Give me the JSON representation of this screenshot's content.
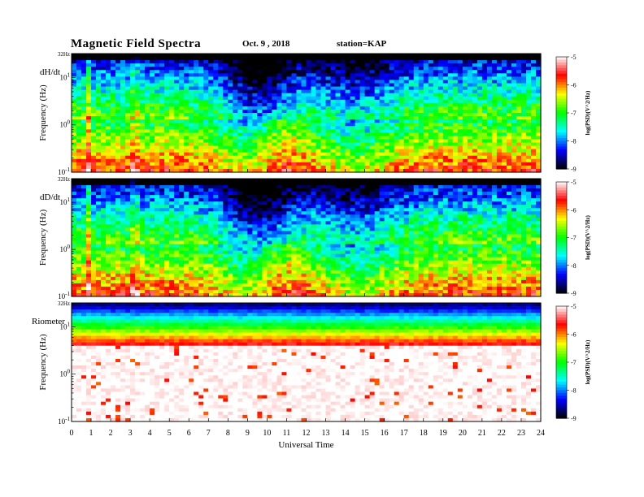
{
  "header": {
    "title": "Magnetic  Field  Spectra",
    "date": "Oct. 9  , 2018",
    "station": "station=KAP"
  },
  "colorbar": {
    "label": "log(PSD)(V^2/Hz)",
    "ticks": [
      "-5",
      "-6",
      "-7",
      "-8",
      "-9"
    ],
    "colors": [
      "#ffffff",
      "#ff0000",
      "#ffff00",
      "#00ff00",
      "#00ffff",
      "#0000ff",
      "#000000"
    ]
  },
  "chart_data": [
    {
      "type": "heatmap",
      "panel_label": "dH/dt",
      "ylabel": "Frequency  (Hz)",
      "xlabel": "",
      "y_scale": "log",
      "y_tick_labels": [
        "32Hz",
        "10^1",
        "10^0",
        "10^-1"
      ],
      "xlim": [
        0,
        24
      ],
      "x_tick_labels": [],
      "zlabel": "log(PSD)(V^2/Hz)",
      "zlim": [
        -9,
        -5
      ]
    },
    {
      "type": "heatmap",
      "panel_label": "dD/dt",
      "ylabel": "Frequency  (Hz)",
      "xlabel": "",
      "y_scale": "log",
      "y_tick_labels": [
        "32Hz",
        "10^1",
        "10^0",
        "10^-1"
      ],
      "xlim": [
        0,
        24
      ],
      "x_tick_labels": [],
      "zlabel": "log(PSD)(V^2/Hz)",
      "zlim": [
        -9,
        -5
      ]
    },
    {
      "type": "heatmap",
      "panel_label": "Riometer",
      "ylabel": "Frequency  (Hz)",
      "xlabel": "Universal Time",
      "y_scale": "log",
      "y_tick_labels": [
        "32Hz",
        "10^1",
        "10^0",
        "10^-1"
      ],
      "xlim": [
        0,
        24
      ],
      "x_tick_labels": [
        "0",
        "1",
        "2",
        "3",
        "4",
        "5",
        "6",
        "7",
        "8",
        "9",
        "10",
        "11",
        "12",
        "13",
        "14",
        "15",
        "16",
        "17",
        "18",
        "19",
        "20",
        "21",
        "22",
        "23",
        "24"
      ],
      "zlabel": "log(PSD)(V^2/Hz)",
      "zlim": [
        -9,
        -5
      ]
    }
  ]
}
